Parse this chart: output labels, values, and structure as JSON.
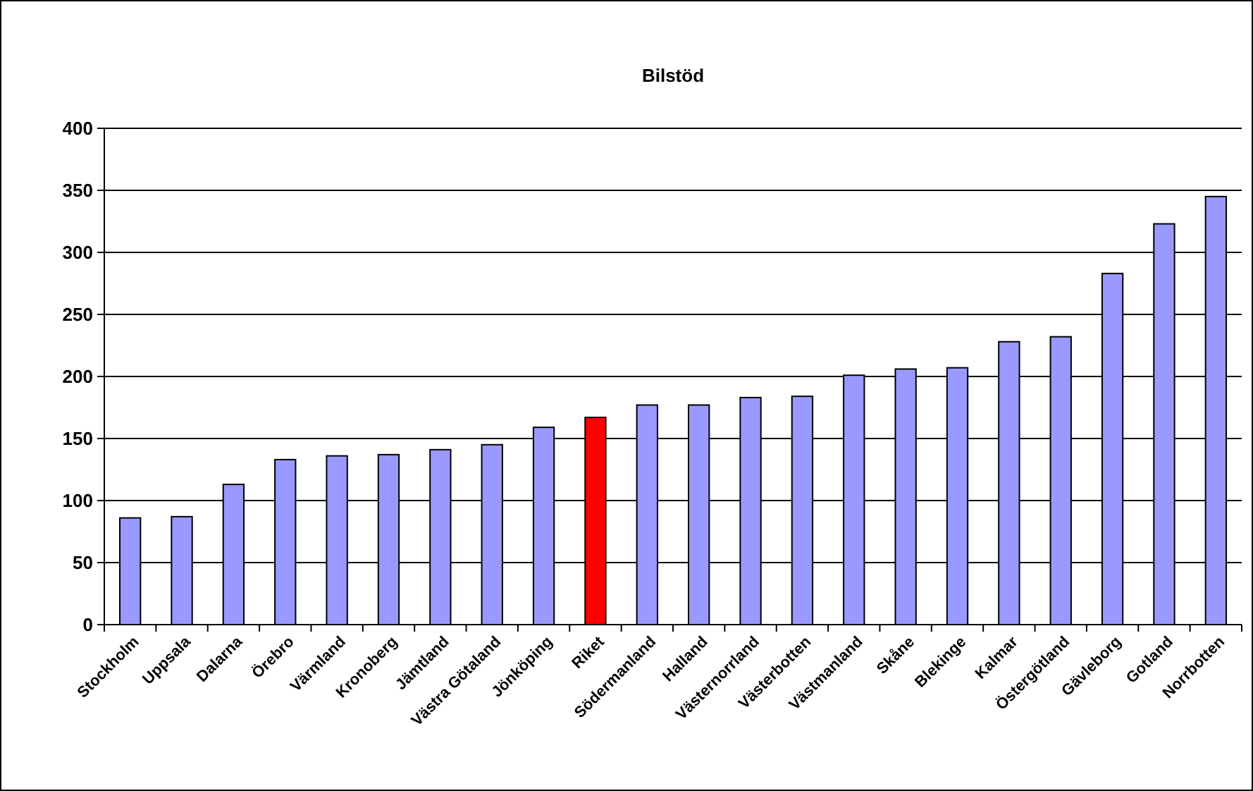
{
  "chart_data": {
    "type": "bar",
    "title": "Bilstöd",
    "categories": [
      "Stockholm",
      "Uppsala",
      "Dalarna",
      "Örebro",
      "Värmland",
      "Kronoberg",
      "Jämtland",
      "Västra Götaland",
      "Jönköping",
      "Riket",
      "Södermanland",
      "Halland",
      "Västernorrland",
      "Västerbotten",
      "Västmanland",
      "Skåne",
      "Blekinge",
      "Kalmar",
      "Östergötland",
      "Gävleborg",
      "Gotland",
      "Norrbotten"
    ],
    "values": [
      86,
      87,
      113,
      133,
      136,
      137,
      141,
      145,
      159,
      167,
      177,
      177,
      183,
      184,
      201,
      206,
      207,
      228,
      232,
      283,
      323,
      345
    ],
    "colors": [
      "#9999ff",
      "#9999ff",
      "#9999ff",
      "#9999ff",
      "#9999ff",
      "#9999ff",
      "#9999ff",
      "#9999ff",
      "#9999ff",
      "#ff0000",
      "#9999ff",
      "#9999ff",
      "#9999ff",
      "#9999ff",
      "#9999ff",
      "#9999ff",
      "#9999ff",
      "#9999ff",
      "#9999ff",
      "#9999ff",
      "#9999ff",
      "#9999ff"
    ],
    "ylim": [
      0,
      400
    ],
    "yticks": [
      0,
      50,
      100,
      150,
      200,
      250,
      300,
      350,
      400
    ],
    "grid": "y"
  }
}
